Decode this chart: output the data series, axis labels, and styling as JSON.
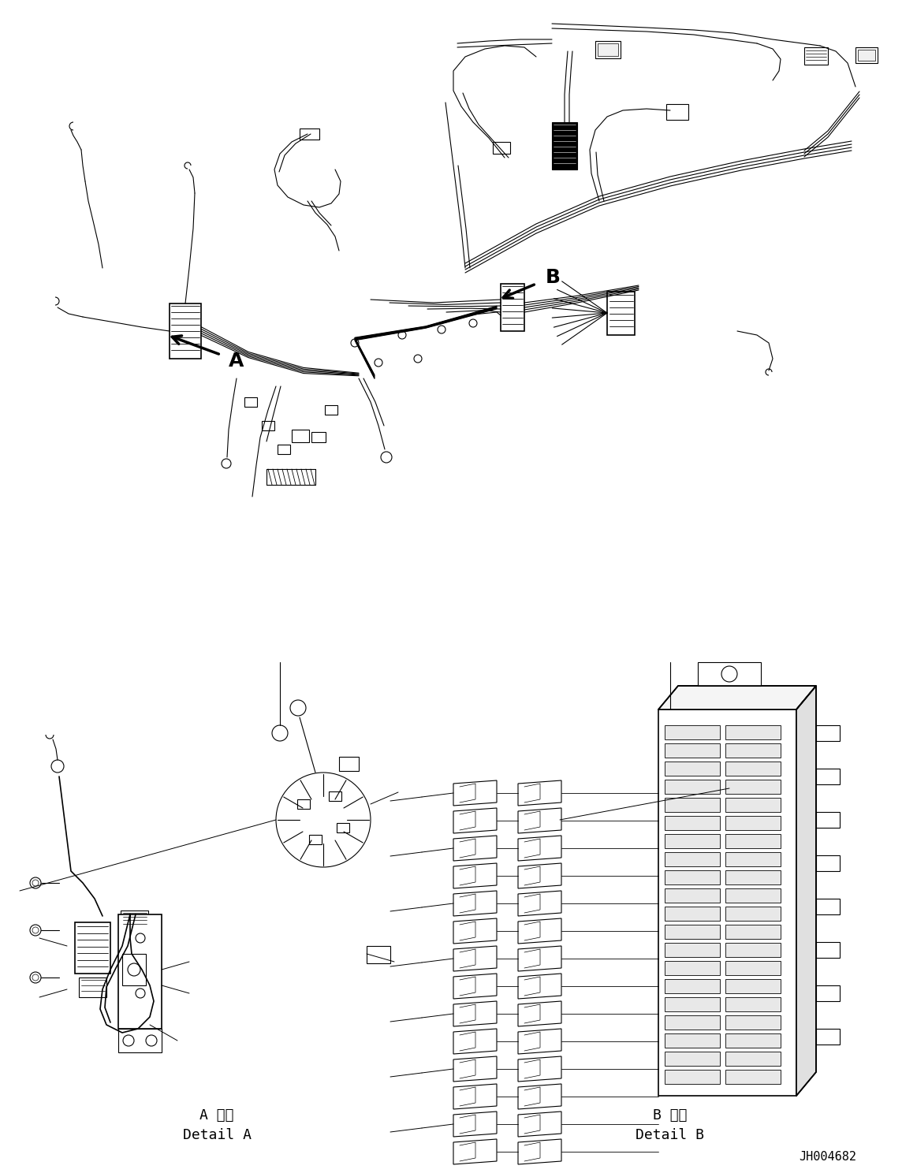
{
  "bg_color": "#ffffff",
  "fig_width": 11.63,
  "fig_height": 14.88,
  "dpi": 100,
  "part_number": "JH004682",
  "label_A_jp": "A 詳細",
  "label_A_en": "Detail A",
  "label_B_jp": "B 詳細",
  "label_B_en": "Detail B"
}
